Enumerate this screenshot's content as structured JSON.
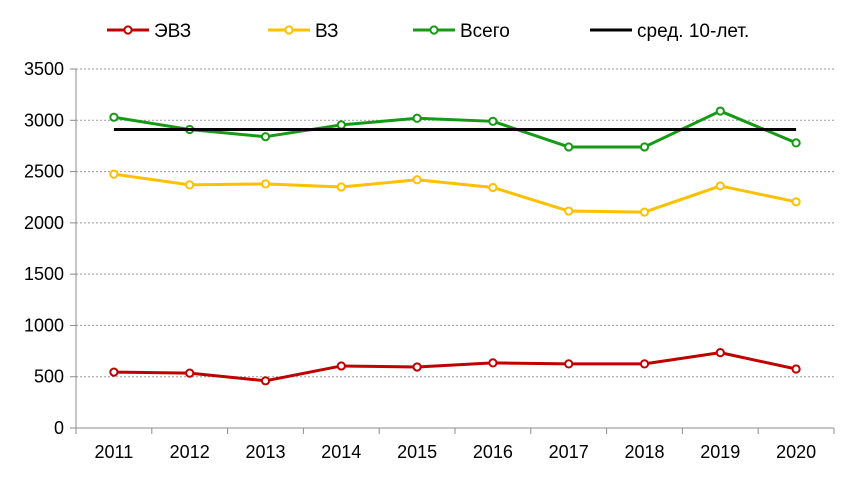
{
  "chart_data": {
    "type": "line",
    "title": "",
    "xlabel": "",
    "ylabel": "",
    "categories": [
      "2011",
      "2012",
      "2013",
      "2014",
      "2015",
      "2016",
      "2017",
      "2018",
      "2019",
      "2020"
    ],
    "ylim": [
      0,
      3500
    ],
    "yticks": [
      0,
      500,
      1000,
      1500,
      2000,
      2500,
      3000,
      3500
    ],
    "grid": "horizontal dotted",
    "legend_position": "top",
    "series": [
      {
        "name": "ЭВЗ",
        "color": "#c00000",
        "marker": "circle",
        "values": [
          545,
          535,
          460,
          605,
          595,
          635,
          625,
          625,
          735,
          575
        ]
      },
      {
        "name": "ВЗ",
        "color": "#ffc000",
        "marker": "circle",
        "values": [
          2475,
          2370,
          2380,
          2350,
          2420,
          2345,
          2115,
          2105,
          2360,
          2205
        ]
      },
      {
        "name": "Всего",
        "color": "#169a16",
        "marker": "circle",
        "values": [
          3030,
          2910,
          2840,
          2955,
          3020,
          2990,
          2740,
          2740,
          3090,
          2780
        ]
      },
      {
        "name": "сред. 10-лет.",
        "color": "#000000",
        "marker": "none",
        "values": [
          2910,
          2910,
          2910,
          2910,
          2910,
          2910,
          2910,
          2910,
          2910,
          2910
        ]
      }
    ]
  }
}
